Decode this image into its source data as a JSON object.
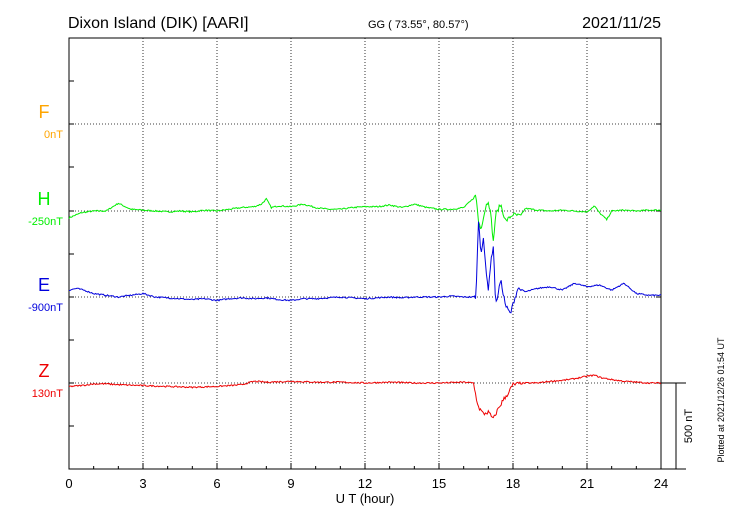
{
  "header": {
    "station": "Dixon Island (DIK)  [AARI]",
    "coords": "GG ( 73.55°,  80.57°)",
    "date": "2021/11/25"
  },
  "footer": {
    "plotted": "Plotted at 2021/12/26 01:54 UT"
  },
  "chart_data": {
    "type": "line",
    "xlabel": "U T (hour)",
    "xlim": [
      0,
      24
    ],
    "xticks": [
      "0",
      "3",
      "6",
      "9",
      "12",
      "15",
      "18",
      "21",
      "24"
    ],
    "scale_bar": {
      "label": "500 nT",
      "value_nT": 500
    },
    "colors": {
      "F": "#ffa500",
      "H": "#00ee00",
      "E": "#0000dd",
      "Z": "#ee0000"
    },
    "series": [
      {
        "name": "F",
        "baseline_label": "0nT",
        "values": []
      },
      {
        "name": "H",
        "baseline_label": "-250nT",
        "x": [
          0,
          0.5,
          1,
          1.5,
          2,
          2.5,
          3,
          3.5,
          4,
          4.5,
          5,
          5.5,
          6,
          6.5,
          7,
          7.5,
          7.8,
          8,
          8.2,
          8.5,
          9,
          9.5,
          10,
          10.5,
          11,
          11.5,
          12,
          12.5,
          13,
          13.5,
          14,
          14.5,
          15,
          15.5,
          16,
          16.3,
          16.5,
          16.6,
          16.7,
          16.8,
          16.9,
          17,
          17.1,
          17.2,
          17.3,
          17.5,
          17.7,
          18,
          18.3,
          18.5,
          19,
          19.5,
          20,
          20.5,
          21,
          21.3,
          21.5,
          21.8,
          22,
          22.5,
          23,
          23.5,
          24
        ],
        "values": [
          -40,
          -10,
          0,
          0,
          45,
          10,
          5,
          0,
          -5,
          0,
          -5,
          5,
          0,
          10,
          20,
          25,
          40,
          70,
          20,
          30,
          25,
          40,
          20,
          10,
          10,
          20,
          25,
          25,
          35,
          20,
          40,
          20,
          10,
          10,
          20,
          60,
          90,
          -60,
          -100,
          -40,
          30,
          60,
          -20,
          -180,
          -20,
          40,
          -60,
          -20,
          -30,
          15,
          5,
          0,
          5,
          0,
          -5,
          30,
          -10,
          -50,
          0,
          5,
          0,
          5,
          5
        ]
      },
      {
        "name": "E",
        "baseline_label": "-900nT",
        "x": [
          0,
          0.3,
          0.6,
          1,
          1.5,
          2,
          2.5,
          3,
          3.5,
          4,
          4.5,
          5,
          5.5,
          6,
          6.5,
          7,
          7.5,
          8,
          8.5,
          9,
          9.5,
          10,
          10.5,
          11,
          11.5,
          12,
          12.5,
          13,
          13.5,
          14,
          14.5,
          15,
          15.5,
          16,
          16.3,
          16.5,
          16.6,
          16.7,
          16.8,
          16.9,
          17,
          17.1,
          17.2,
          17.3,
          17.5,
          17.7,
          17.9,
          18,
          18.2,
          18.5,
          19,
          19.5,
          20,
          20.5,
          21,
          21.5,
          22,
          22.5,
          23,
          23.5,
          24
        ],
        "values": [
          40,
          50,
          40,
          20,
          10,
          0,
          10,
          20,
          0,
          -5,
          -10,
          -15,
          -10,
          -20,
          -10,
          -5,
          -10,
          -5,
          -15,
          -20,
          -10,
          -10,
          -5,
          0,
          -5,
          -10,
          -5,
          0,
          -5,
          0,
          0,
          0,
          5,
          0,
          0,
          0,
          450,
          250,
          350,
          150,
          50,
          200,
          300,
          -50,
          100,
          -50,
          -100,
          -40,
          50,
          30,
          50,
          60,
          40,
          80,
          60,
          70,
          40,
          80,
          20,
          10,
          10
        ]
      },
      {
        "name": "Z",
        "baseline_label": "130nT",
        "x": [
          0,
          0.5,
          1,
          1.5,
          2,
          3,
          4,
          5,
          6,
          7,
          7.5,
          8,
          9,
          10,
          11,
          12,
          13,
          14,
          15,
          16,
          16.4,
          16.5,
          16.6,
          16.8,
          17,
          17.2,
          17.4,
          17.6,
          17.8,
          18,
          18.5,
          19,
          19.5,
          20,
          20.5,
          21,
          21.3,
          21.6,
          22,
          22.5,
          23,
          23.5,
          24
        ],
        "values": [
          -20,
          -15,
          -5,
          -5,
          -10,
          -15,
          -20,
          -25,
          -20,
          -10,
          10,
          5,
          10,
          5,
          5,
          0,
          5,
          0,
          0,
          5,
          0,
          -80,
          -140,
          -180,
          -170,
          -210,
          -150,
          -100,
          -60,
          -10,
          0,
          0,
          10,
          15,
          25,
          40,
          45,
          30,
          20,
          10,
          5,
          0,
          0
        ]
      }
    ]
  }
}
